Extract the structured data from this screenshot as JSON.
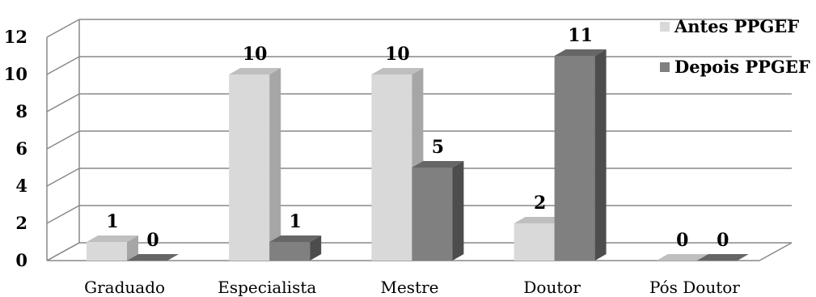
{
  "chart_data": {
    "type": "bar",
    "title": "",
    "xlabel": "",
    "ylabel": "",
    "categories": [
      "Graduado",
      "Especialista",
      "Mestre",
      "Doutor",
      "Pós Doutor"
    ],
    "series": [
      {
        "name": "Antes PPGEF",
        "values": [
          1,
          10,
          10,
          2,
          0
        ],
        "color": "#d9d9d9"
      },
      {
        "name": "Depois PPGEF",
        "values": [
          0,
          1,
          5,
          11,
          0
        ],
        "color": "#808080"
      }
    ],
    "ylim": [
      0,
      12
    ],
    "yticks": [
      0,
      2,
      4,
      6,
      8,
      10,
      12
    ],
    "grid": true,
    "legend_position": "top-right",
    "style": "3d-clustered-column"
  }
}
